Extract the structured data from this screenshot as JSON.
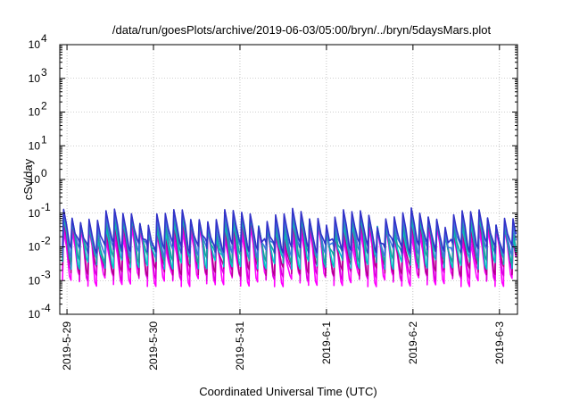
{
  "chart_data": {
    "type": "line",
    "title": "/data/run/goesPlots/archive/2019-06-03/05:00/bryn/../bryn/5daysMars.plot",
    "xlabel": "Coordinated Universal Time (UTC)",
    "ylabel": "cSv/day",
    "yscale": "log",
    "ylim": [
      0.0001,
      10000
    ],
    "y_ticks": [
      {
        "base": "10",
        "exp": "-4",
        "value": 0.0001
      },
      {
        "base": "10",
        "exp": "-3",
        "value": 0.001
      },
      {
        "base": "10",
        "exp": "-2",
        "value": 0.01
      },
      {
        "base": "10",
        "exp": "-1",
        "value": 0.1
      },
      {
        "base": "10",
        "exp": "0",
        "value": 1
      },
      {
        "base": "10",
        "exp": "1",
        "value": 10
      },
      {
        "base": "10",
        "exp": "2",
        "value": 100
      },
      {
        "base": "10",
        "exp": "3",
        "value": 1000
      },
      {
        "base": "10",
        "exp": "4",
        "value": 10000
      }
    ],
    "xlim": [
      "2019-05-28 22:00",
      "2019-06-03 05:00"
    ],
    "x_ticks": [
      "2019-5-29",
      "2019-5-30",
      "2019-5-31",
      "2019-6-1",
      "2019-6-2",
      "2019-6-3"
    ],
    "grid": true,
    "pattern": "sawtooth, roughly 10 cycles per day; each cycle rises sharply and decays",
    "series": [
      {
        "color": "#ff00ff",
        "peak": 0.03,
        "trough": 0.0012
      },
      {
        "color": "#dd00dd",
        "peak": 0.04,
        "trough": 0.0018
      },
      {
        "color": "#b40090",
        "peak": 0.05,
        "trough": 0.0025
      },
      {
        "color": "#00c8c8",
        "peak": 0.06,
        "trough": 0.004
      },
      {
        "color": "#1aa0a0",
        "peak": 0.07,
        "trough": 0.006
      },
      {
        "color": "#3c78dc",
        "peak": 0.09,
        "trough": 0.009
      },
      {
        "color": "#3232c8",
        "peak": 0.11,
        "trough": 0.012
      }
    ]
  }
}
